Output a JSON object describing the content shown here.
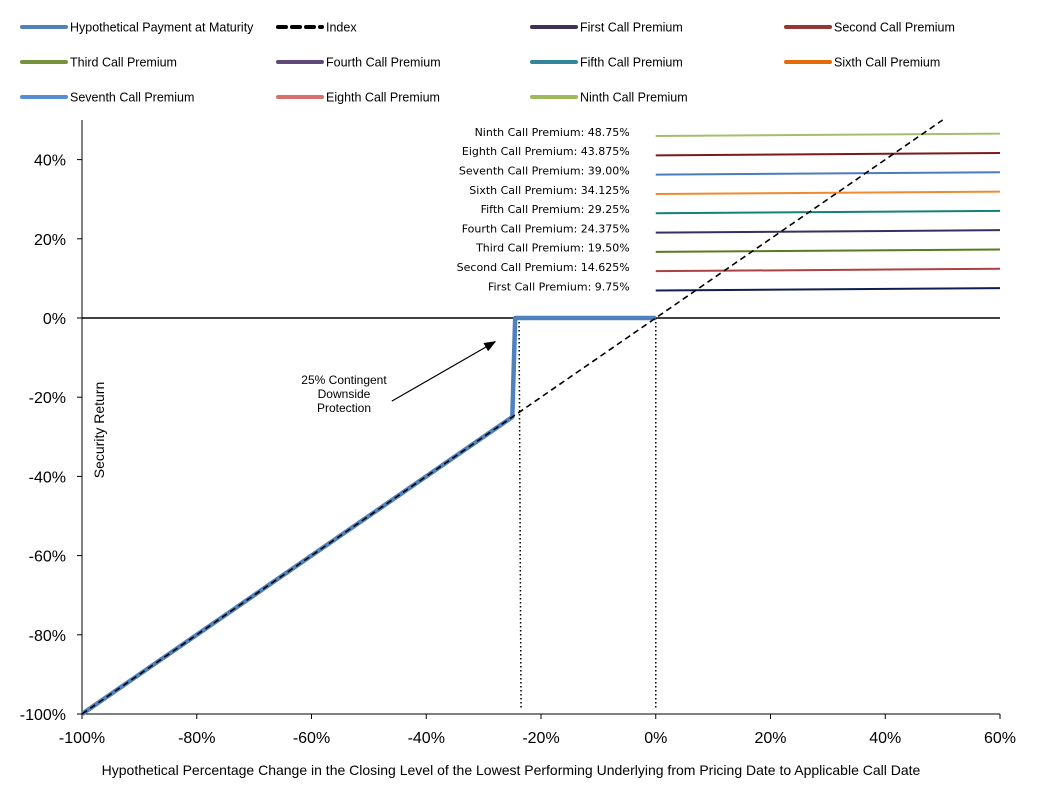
{
  "chart_data": {
    "type": "line",
    "xlabel": "Hypothetical Percentage Change in the Closing Level of the Lowest Performing Underlying from Pricing Date to Applicable Call Date",
    "ylabel": "Security Return",
    "xlim": [
      -100,
      60
    ],
    "ylim": [
      -100,
      50
    ],
    "x_ticks": [
      {
        "value": -100,
        "label": "-100%"
      },
      {
        "value": -80,
        "label": "-80%"
      },
      {
        "value": -60,
        "label": "-60%"
      },
      {
        "value": -40,
        "label": "-40%"
      },
      {
        "value": -20,
        "label": "-20%"
      },
      {
        "value": 0,
        "label": "0%"
      },
      {
        "value": 20,
        "label": "20%"
      },
      {
        "value": 40,
        "label": "40%"
      },
      {
        "value": 60,
        "label": "60%"
      }
    ],
    "y_ticks": [
      {
        "value": -100,
        "label": "-100%"
      },
      {
        "value": -80,
        "label": "-80%"
      },
      {
        "value": -60,
        "label": "-60%"
      },
      {
        "value": -40,
        "label": "-40%"
      },
      {
        "value": -20,
        "label": "-20%"
      },
      {
        "value": 0,
        "label": "0%"
      },
      {
        "value": 20,
        "label": "20%"
      },
      {
        "value": 40,
        "label": "40%"
      }
    ],
    "legend": [
      {
        "label": "Hypothetical Payment at Maturity",
        "color": "#4f81bd",
        "dashed": false
      },
      {
        "label": "Index",
        "color": "#000000",
        "dashed": true
      },
      {
        "label": "First Call Premium",
        "color": "#403152",
        "dashed": false
      },
      {
        "label": "Second Call Premium",
        "color": "#943634",
        "dashed": false
      },
      {
        "label": "Third Call Premium",
        "color": "#76923c",
        "dashed": false
      },
      {
        "label": "Fourth Call Premium",
        "color": "#5f497a",
        "dashed": false
      },
      {
        "label": "Fifth Call Premium",
        "color": "#31859c",
        "dashed": false
      },
      {
        "label": "Sixth Call Premium",
        "color": "#e36c09",
        "dashed": false
      },
      {
        "label": "Seventh Call Premium",
        "color": "#558ed5",
        "dashed": false
      },
      {
        "label": "Eighth Call Premium",
        "color": "#d9706e",
        "dashed": false
      },
      {
        "label": "Ninth Call Premium",
        "color": "#9bbb59",
        "dashed": false
      }
    ],
    "series": [
      {
        "name": "Hypothetical Payment at Maturity",
        "color": "#4f81bd",
        "points": [
          [
            -100,
            -100
          ],
          [
            -25,
            -25
          ],
          [
            -24.5,
            0
          ],
          [
            0,
            0
          ]
        ]
      },
      {
        "name": "Index",
        "color": "#000000",
        "dashed": true,
        "points": [
          [
            -100,
            -100
          ],
          [
            50,
            50
          ]
        ]
      }
    ],
    "call_premiums": [
      {
        "name": "First Call Premium",
        "label": "First Call Premium: 9.75%",
        "value": 9.75,
        "color": "#0f1f4f"
      },
      {
        "name": "Second Call Premium",
        "label": "Second Call Premium: 14.625%",
        "value": 14.625,
        "color": "#b04040"
      },
      {
        "name": "Third Call Premium",
        "label": "Third Call Premium: 19.50%",
        "value": 19.5,
        "color": "#5a7a20"
      },
      {
        "name": "Fourth Call Premium",
        "label": "Fourth Call Premium: 24.375%",
        "value": 24.375,
        "color": "#3a2f5c"
      },
      {
        "name": "Fifth Call Premium",
        "label": "Fifth Call Premium: 29.25%",
        "value": 29.25,
        "color": "#14807a"
      },
      {
        "name": "Sixth Call Premium",
        "label": "Sixth Call Premium: 34.125%",
        "value": 34.125,
        "color": "#f08a30"
      },
      {
        "name": "Seventh Call Premium",
        "label": "Seventh Call Premium: 39.00%",
        "value": 39.0,
        "color": "#4a7cc0"
      },
      {
        "name": "Eighth Call Premium",
        "label": "Eighth Call Premium: 43.875%",
        "value": 43.875,
        "color": "#7a1a1a"
      },
      {
        "name": "Ninth Call Premium",
        "label": "Ninth Call Premium: 48.75%",
        "value": 48.75,
        "color": "#a0c070"
      }
    ],
    "call_premium_x_range": [
      0,
      60
    ],
    "annotation": {
      "lines": [
        "25% Contingent",
        "Downside",
        "Protection"
      ],
      "arrow_from": [
        -46,
        -21
      ],
      "arrow_to": [
        -28,
        -6
      ]
    },
    "vertical_markers": [
      -24,
      0
    ],
    "grid": false
  }
}
